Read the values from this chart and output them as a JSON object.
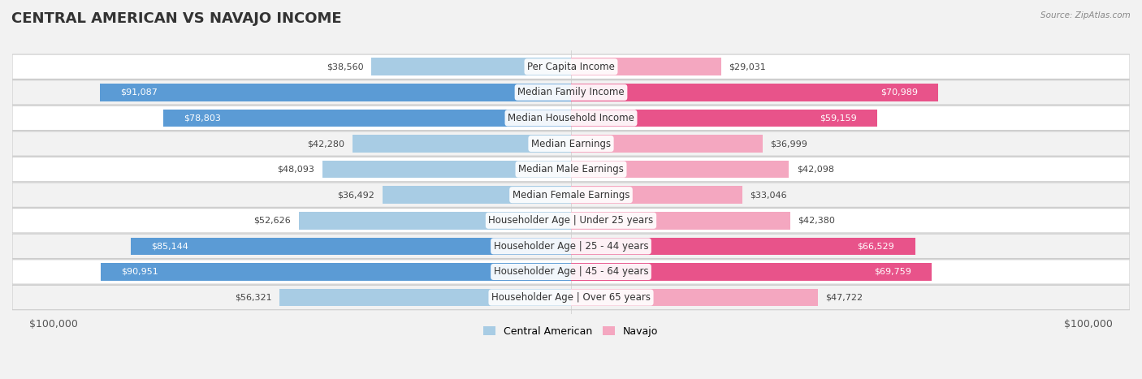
{
  "title": "CENTRAL AMERICAN VS NAVAJO INCOME",
  "source": "Source: ZipAtlas.com",
  "categories": [
    "Per Capita Income",
    "Median Family Income",
    "Median Household Income",
    "Median Earnings",
    "Median Male Earnings",
    "Median Female Earnings",
    "Householder Age | Under 25 years",
    "Householder Age | 25 - 44 years",
    "Householder Age | 45 - 64 years",
    "Householder Age | Over 65 years"
  ],
  "central_american": [
    38560,
    91087,
    78803,
    42280,
    48093,
    36492,
    52626,
    85144,
    90951,
    56321
  ],
  "navajo": [
    29031,
    70989,
    59159,
    36999,
    42098,
    33046,
    42380,
    66529,
    69759,
    47722
  ],
  "max_val": 100000,
  "color_ca_light": "#a8cce4",
  "color_ca_dark": "#5b9bd5",
  "color_nav_light": "#f4a7c0",
  "color_nav_dark": "#e8538a",
  "bg_color": "#f2f2f2",
  "row_bg_even": "#ffffff",
  "row_bg_odd": "#f2f2f2",
  "title_fontsize": 13,
  "cat_fontsize": 8.5,
  "value_fontsize": 8,
  "legend_fontsize": 9,
  "ca_dark_threshold": 70000,
  "nav_dark_threshold": 55000
}
